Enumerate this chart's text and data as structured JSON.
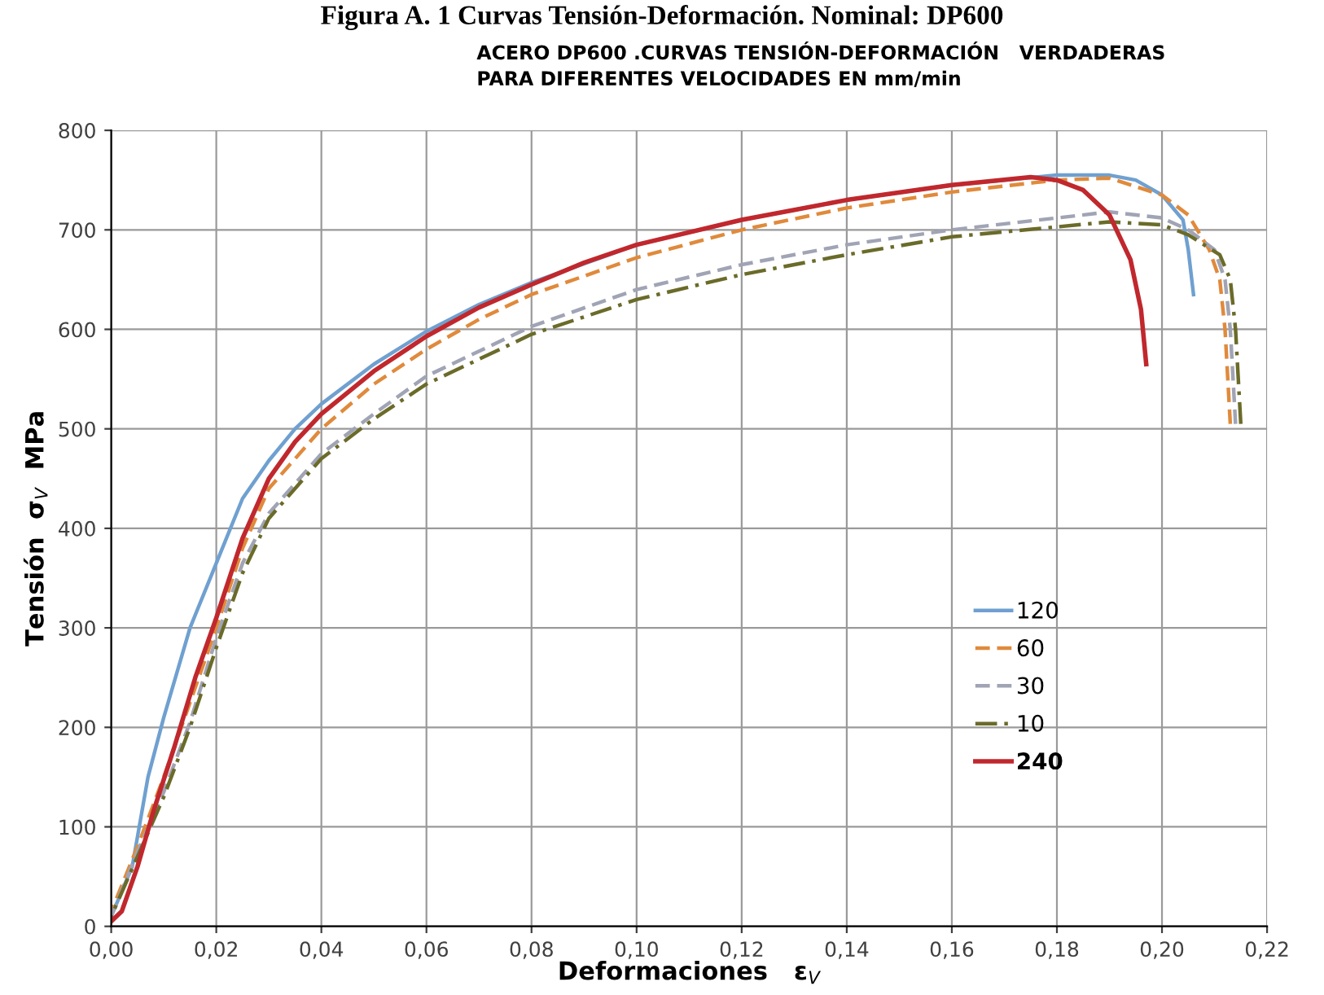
{
  "chart_data": {
    "type": "line",
    "title": "Figura A. 1 Curvas Tensión-Deformación. Nominal: DP600",
    "subtitle": "ACERO DP600 .CURVAS TENSIÓN-DEFORMACIÓN   VERDADERAS\nPARA DIFERENTES VELOCIDADES EN mm/min",
    "xlabel": "Deformaciones   ε$_{V}$",
    "ylabel": "Tensión  σ$_{V}$  MPa",
    "series": [
      {
        "name": "120",
        "color": "#6fa0d0",
        "line_style": "solid",
        "x": [
          0,
          0.004,
          0.007,
          0.01,
          0.015,
          0.02,
          0.025,
          0.03,
          0.035,
          0.04,
          0.05,
          0.06,
          0.07,
          0.08,
          0.1,
          0.12,
          0.14,
          0.16,
          0.18,
          0.19,
          0.195,
          0.2,
          0.204,
          0.205,
          0.206
        ],
        "values": [
          10,
          60,
          150,
          210,
          300,
          365,
          430,
          468,
          500,
          525,
          565,
          598,
          625,
          647,
          685,
          710,
          730,
          745,
          755,
          755,
          750,
          735,
          710,
          680,
          635
        ]
      },
      {
        "name": "60",
        "color": "#e08a3c",
        "line_style": "dashed",
        "x": [
          0,
          0.005,
          0.01,
          0.015,
          0.02,
          0.025,
          0.03,
          0.04,
          0.05,
          0.06,
          0.07,
          0.08,
          0.1,
          0.12,
          0.14,
          0.16,
          0.18,
          0.19,
          0.2,
          0.205,
          0.209,
          0.211,
          0.212,
          0.213
        ],
        "values": [
          15,
          80,
          150,
          225,
          300,
          380,
          440,
          500,
          545,
          580,
          610,
          635,
          672,
          700,
          722,
          738,
          750,
          752,
          735,
          715,
          680,
          650,
          600,
          505
        ]
      },
      {
        "name": "30",
        "color": "#a0a4b4",
        "line_style": "dashed",
        "x": [
          0,
          0.005,
          0.01,
          0.015,
          0.02,
          0.025,
          0.03,
          0.04,
          0.05,
          0.06,
          0.08,
          0.1,
          0.12,
          0.14,
          0.16,
          0.18,
          0.19,
          0.2,
          0.205,
          0.21,
          0.212,
          0.213,
          0.214
        ],
        "values": [
          10,
          75,
          135,
          205,
          290,
          365,
          415,
          475,
          515,
          553,
          603,
          640,
          665,
          685,
          700,
          712,
          718,
          712,
          700,
          680,
          650,
          600,
          505
        ]
      },
      {
        "name": "10",
        "color": "#6b6b2a",
        "line_style": "dashdot",
        "x": [
          0,
          0.005,
          0.01,
          0.015,
          0.02,
          0.025,
          0.03,
          0.04,
          0.05,
          0.06,
          0.08,
          0.1,
          0.12,
          0.14,
          0.16,
          0.18,
          0.19,
          0.2,
          0.205,
          0.211,
          0.213,
          0.214,
          0.215
        ],
        "values": [
          10,
          70,
          130,
          200,
          280,
          355,
          410,
          470,
          510,
          545,
          595,
          630,
          655,
          675,
          693,
          703,
          708,
          705,
          695,
          675,
          650,
          600,
          505
        ]
      },
      {
        "name": "240",
        "color": "#c0282d",
        "line_style": "solid",
        "x": [
          0,
          0.002,
          0.005,
          0.008,
          0.012,
          0.016,
          0.02,
          0.025,
          0.03,
          0.035,
          0.04,
          0.05,
          0.06,
          0.07,
          0.08,
          0.09,
          0.1,
          0.12,
          0.14,
          0.16,
          0.175,
          0.18,
          0.185,
          0.19,
          0.194,
          0.196,
          0.197
        ],
        "values": [
          5,
          15,
          60,
          115,
          180,
          250,
          310,
          390,
          450,
          487,
          515,
          558,
          593,
          622,
          645,
          667,
          685,
          710,
          730,
          745,
          753,
          750,
          740,
          715,
          670,
          620,
          565
        ]
      }
    ],
    "xlim": [
      0,
      0.22
    ],
    "ylim": [
      0,
      800
    ],
    "xticks": [
      {
        "value": 0,
        "label": "0,00"
      },
      {
        "value": 0.02,
        "label": "0,02"
      },
      {
        "value": 0.04,
        "label": "0,04"
      },
      {
        "value": 0.06,
        "label": "0,06"
      },
      {
        "value": 0.08,
        "label": "0,08"
      },
      {
        "value": 0.1,
        "label": "0,10"
      },
      {
        "value": 0.12,
        "label": "0,12"
      },
      {
        "value": 0.14,
        "label": "0,14"
      },
      {
        "value": 0.16,
        "label": "0,16"
      },
      {
        "value": 0.18,
        "label": "0,18"
      },
      {
        "value": 0.2,
        "label": "0,20"
      },
      {
        "value": 0.22,
        "label": "0,22"
      }
    ],
    "yticks": [
      0,
      100,
      200,
      300,
      400,
      500,
      600,
      700,
      800
    ],
    "grid": true,
    "legend": "right",
    "marker": "none"
  }
}
